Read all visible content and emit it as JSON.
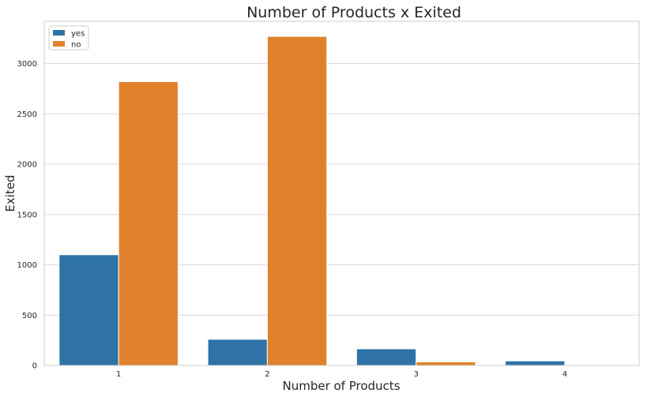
{
  "chart_data": {
    "type": "bar",
    "title": "Number of Products x Exited",
    "xlabel": "Number of Products",
    "ylabel": "Exited",
    "categories": [
      "1",
      "2",
      "3",
      "4"
    ],
    "series": [
      {
        "name": "yes",
        "color": "#2f73a6",
        "values": [
          1100,
          260,
          165,
          45
        ]
      },
      {
        "name": "no",
        "color": "#e1812c",
        "values": [
          2820,
          3270,
          35,
          0
        ]
      }
    ],
    "yticks": [
      0,
      500,
      1000,
      1500,
      2000,
      2500,
      3000
    ],
    "ylim": [
      0,
      3420
    ],
    "grid": true,
    "legend_position": "top-left"
  }
}
